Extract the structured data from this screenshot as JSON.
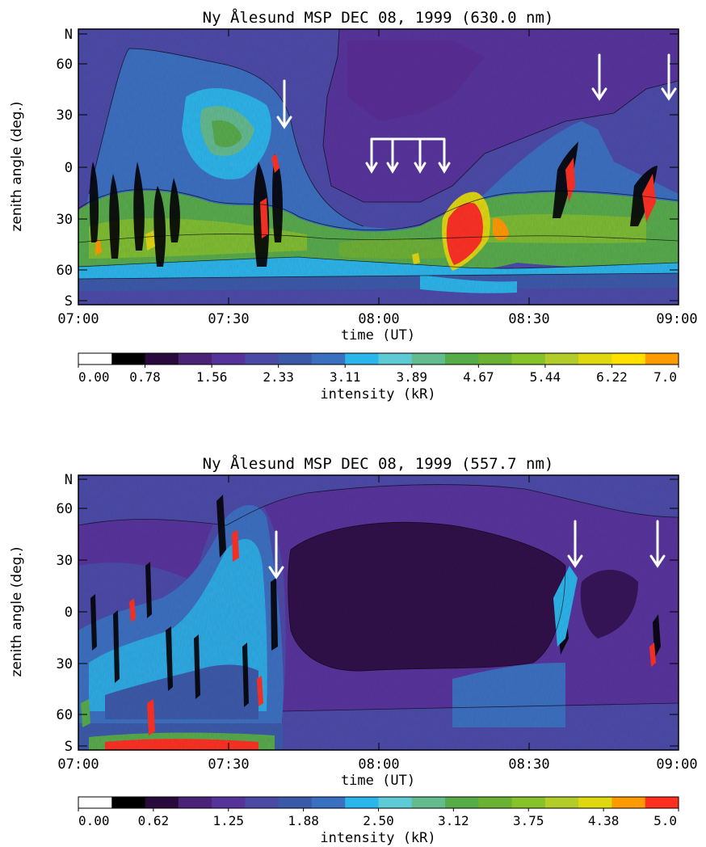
{
  "chart_data": [
    {
      "type": "heatmap",
      "title": "Ny Ålesund MSP DEC 08, 1999 (630.0 nm)",
      "xlabel": "time (UT)",
      "ylabel": "zenith angle (deg.)",
      "x_ticks": [
        "07:00",
        "07:30",
        "08:00",
        "08:30",
        "09:00"
      ],
      "y_ticks": [
        "N",
        "60",
        "30",
        "0",
        "30",
        "60",
        "S"
      ],
      "colorbar": {
        "label": "intensity (kR)",
        "ticks": [
          "0.00",
          "0.78",
          "1.56",
          "2.33",
          "3.11",
          "3.89",
          "4.67",
          "5.44",
          "6.22",
          "7.0"
        ],
        "range": [
          0,
          7.0
        ],
        "colors": [
          "#ffffff",
          "#000000",
          "#2a0a3c",
          "#4a2276",
          "#56339a",
          "#4a4aa6",
          "#3a5aa8",
          "#3a70c0",
          "#2ab6ea",
          "#5ecad6",
          "#62bc8e",
          "#56ac48",
          "#6cb232",
          "#86c22a",
          "#b4cc2a",
          "#e0d80e",
          "#ffe000",
          "#ff9a00"
        ]
      },
      "arrows": "white arrows at 07:43, 07:58–08:12 (4), 08:47, 08:58"
    },
    {
      "type": "heatmap",
      "title": "Ny Ålesund MSP DEC 08, 1999 (557.7 nm)",
      "xlabel": "time (UT)",
      "ylabel": "zenith angle (deg.)",
      "x_ticks": [
        "07:00",
        "07:30",
        "08:00",
        "08:30",
        "09:00"
      ],
      "y_ticks": [
        "N",
        "60",
        "30",
        "0",
        "30",
        "60",
        "S"
      ],
      "colorbar": {
        "label": "intensity (kR)",
        "ticks": [
          "0.00",
          "0.62",
          "1.25",
          "1.88",
          "2.50",
          "3.12",
          "3.75",
          "4.38",
          "5.0"
        ],
        "range": [
          0,
          5.0
        ],
        "colors": [
          "#ffffff",
          "#000000",
          "#2a0a3c",
          "#4a2276",
          "#56339a",
          "#4a4aa6",
          "#3a5aa8",
          "#3a70c0",
          "#2ab6ea",
          "#5ecad6",
          "#62bc8e",
          "#56ac48",
          "#6cb232",
          "#86c22a",
          "#b4cc2a",
          "#e0d80e",
          "#ff9a00",
          "#ff3020"
        ]
      },
      "arrows": "white arrows at 07:42, 08:44, 08:58"
    }
  ]
}
